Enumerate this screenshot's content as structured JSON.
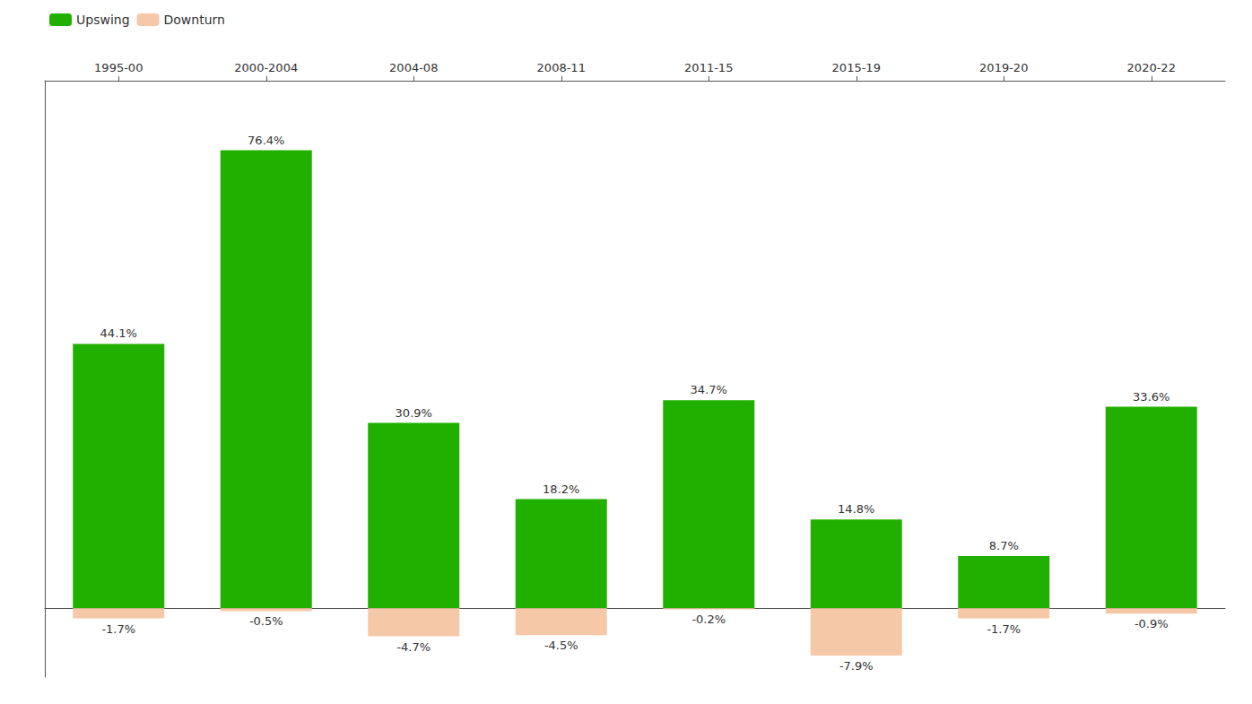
{
  "chart_data": {
    "type": "bar",
    "categories": [
      "1995-00",
      "2000-2004",
      "2004-08",
      "2008-11",
      "2011-15",
      "2015-19",
      "2019-20",
      "2020-22"
    ],
    "series": [
      {
        "name": "Upswing",
        "color": "#22b000",
        "values": [
          44.1,
          76.4,
          30.9,
          18.2,
          34.7,
          14.8,
          8.7,
          33.6
        ],
        "value_labels": [
          "44.1%",
          "76.4%",
          "30.9%",
          "18.2%",
          "34.7%",
          "14.8%",
          "8.7%",
          "33.6%"
        ]
      },
      {
        "name": "Downturn",
        "color": "#f5c9a8",
        "values": [
          -1.7,
          -0.5,
          -4.7,
          -4.5,
          -0.2,
          -7.9,
          -1.7,
          -0.9
        ],
        "value_labels": [
          "-1.7%",
          "-0.5%",
          "-4.7%",
          "-4.5%",
          "-0.2%",
          "-7.9%",
          "-1.7%",
          "-0.9%"
        ]
      }
    ],
    "ylim": [
      -11.5,
      88
    ],
    "data_labels": true,
    "tick_labels": "x",
    "grid": false,
    "legend": "upper left"
  }
}
